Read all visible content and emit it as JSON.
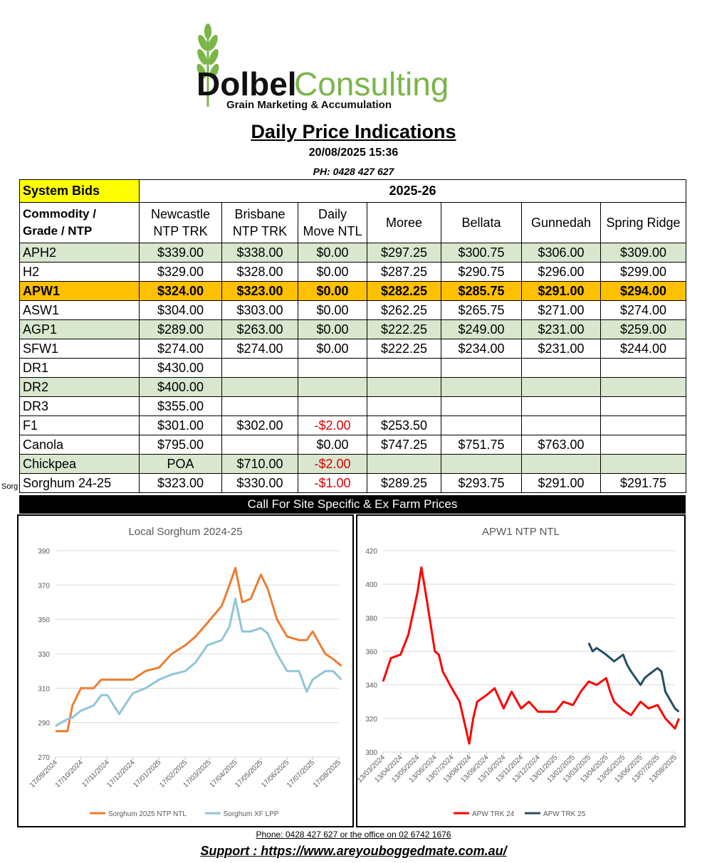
{
  "logo": {
    "brand_a": "Dolbel",
    "brand_b": "Consulting",
    "tagline": "Grain Marketing & Accumulation"
  },
  "header": {
    "title": "Daily Price Indications",
    "datetime": "20/08/2025 15:36",
    "phone": "PH: 0428 427 627"
  },
  "table": {
    "system_bids": "System Bids",
    "season": "2025-26",
    "col_labels": {
      "commodity_1": "Commodity /",
      "commodity_2": "Grade / NTP",
      "newcastle_1": "Newcastle",
      "newcastle_2": "NTP TRK",
      "brisbane_1": "Brisbane",
      "brisbane_2": "NTP TRK",
      "daily_1": "Daily",
      "daily_2": "Move NTL",
      "moree": "Moree",
      "bellata": "Bellata",
      "gunnedah": "Gunnedah",
      "spring_ridge": "Spring Ridge"
    },
    "rows": [
      {
        "grade": "APH2",
        "newcastle": "$339.00",
        "brisbane": "$338.00",
        "move": "$0.00",
        "moree": "$297.25",
        "bellata": "$300.75",
        "gunnedah": "$306.00",
        "spring_ridge": "$309.00"
      },
      {
        "grade": "H2",
        "newcastle": "$329.00",
        "brisbane": "$328.00",
        "move": "$0.00",
        "moree": "$287.25",
        "bellata": "$290.75",
        "gunnedah": "$296.00",
        "spring_ridge": "$299.00"
      },
      {
        "grade": "APW1",
        "newcastle": "$324.00",
        "brisbane": "$323.00",
        "move": "$0.00",
        "moree": "$282.25",
        "bellata": "$285.75",
        "gunnedah": "$291.00",
        "spring_ridge": "$294.00"
      },
      {
        "grade": "ASW1",
        "newcastle": "$304.00",
        "brisbane": "$303.00",
        "move": "$0.00",
        "moree": "$262.25",
        "bellata": "$265.75",
        "gunnedah": "$271.00",
        "spring_ridge": "$274.00"
      },
      {
        "grade": "AGP1",
        "newcastle": "$289.00",
        "brisbane": "$263.00",
        "move": "$0.00",
        "moree": "$222.25",
        "bellata": "$249.00",
        "gunnedah": "$231.00",
        "spring_ridge": "$259.00"
      },
      {
        "grade": "SFW1",
        "newcastle": "$274.00",
        "brisbane": "$274.00",
        "move": "$0.00",
        "moree": "$222.25",
        "bellata": "$234.00",
        "gunnedah": "$231.00",
        "spring_ridge": "$244.00"
      },
      {
        "grade": "DR1",
        "newcastle": "$430.00",
        "brisbane": "",
        "move": "",
        "moree": "",
        "bellata": "",
        "gunnedah": "",
        "spring_ridge": ""
      },
      {
        "grade": "DR2",
        "newcastle": "$400.00",
        "brisbane": "",
        "move": "",
        "moree": "",
        "bellata": "",
        "gunnedah": "",
        "spring_ridge": ""
      },
      {
        "grade": "DR3",
        "newcastle": "$355.00",
        "brisbane": "",
        "move": "",
        "moree": "",
        "bellata": "",
        "gunnedah": "",
        "spring_ridge": ""
      },
      {
        "grade": "F1",
        "newcastle": "$301.00",
        "brisbane": "$302.00",
        "move": "-$2.00",
        "moree": "$253.50",
        "bellata": "",
        "gunnedah": "",
        "spring_ridge": ""
      },
      {
        "grade": "Canola",
        "newcastle": "$795.00",
        "brisbane": "",
        "move": "$0.00",
        "moree": "$747.25",
        "bellata": "$751.75",
        "gunnedah": "$763.00",
        "spring_ridge": ""
      },
      {
        "grade": "Chickpea",
        "newcastle": "POA",
        "brisbane": "$710.00",
        "move": "-$2.00",
        "moree": "",
        "bellata": "",
        "gunnedah": "",
        "spring_ridge": ""
      },
      {
        "grade": "Sorghum 24-25",
        "newcastle": "$323.00",
        "brisbane": "$330.00",
        "move": "-$1.00",
        "moree": "$289.25",
        "bellata": "$293.75",
        "gunnedah": "$291.00",
        "spring_ridge": "$291.75"
      }
    ],
    "sorg_fragment": "Sorg",
    "call_bar": "Call For Site Specific & Ex Farm Prices",
    "colors": {
      "green_row": "#d9e7cf",
      "highlight": "#ffc000",
      "system_bids": "#ffff00",
      "negative": "#e00000"
    }
  },
  "chart_data": [
    {
      "type": "line",
      "title": "Local Sorghum 2024-25",
      "ylim": [
        270,
        390
      ],
      "yticks": [
        270,
        290,
        310,
        330,
        350,
        370,
        390
      ],
      "xticks": [
        "17/09/2024",
        "17/10/2024",
        "17/11/2024",
        "17/12/2024",
        "17/01/2025",
        "17/02/2025",
        "17/03/2025",
        "17/04/2025",
        "17/05/2025",
        "17/06/2025",
        "17/07/2025",
        "17/08/2025"
      ],
      "x": [
        "17/09/2024",
        "01/10/2024",
        "07/10/2024",
        "17/10/2024",
        "01/11/2024",
        "10/11/2024",
        "17/11/2024",
        "01/12/2024",
        "17/12/2024",
        "01/01/2025",
        "17/01/2025",
        "01/02/2025",
        "17/02/2025",
        "01/03/2025",
        "15/03/2025",
        "01/04/2025",
        "10/04/2025",
        "17/04/2025",
        "25/04/2025",
        "05/05/2025",
        "17/05/2025",
        "25/05/2025",
        "05/06/2025",
        "17/06/2025",
        "01/07/2025",
        "10/07/2025",
        "17/07/2025",
        "01/08/2025",
        "10/08/2025",
        "20/08/2025"
      ],
      "grid": true,
      "legend": "bottom",
      "series": [
        {
          "name": "Sorghum  2025 NTP NTL",
          "color": "#ed7d31",
          "values": [
            285,
            285,
            300,
            310,
            310,
            315,
            315,
            315,
            315,
            320,
            322,
            330,
            335,
            340,
            348,
            358,
            370,
            380,
            360,
            362,
            376,
            368,
            350,
            340,
            338,
            338,
            343,
            330,
            327,
            323
          ]
        },
        {
          "name": "Sorghum XF LPP",
          "color": "#92c5d8",
          "values": [
            288,
            292,
            293,
            297,
            300,
            306,
            306,
            295,
            307,
            310,
            315,
            318,
            320,
            325,
            335,
            338,
            346,
            362,
            343,
            343,
            345,
            342,
            330,
            320,
            320,
            308,
            315,
            320,
            320,
            315
          ]
        }
      ]
    },
    {
      "type": "line",
      "title": "APW1 NTP NTL",
      "ylim": [
        300,
        420
      ],
      "yticks": [
        300,
        320,
        340,
        360,
        380,
        400,
        420
      ],
      "xticks": [
        "13/03/2024",
        "13/04/2024",
        "13/05/2024",
        "13/06/2024",
        "13/07/2024",
        "13/08/2024",
        "13/09/2024",
        "13/10/2024",
        "13/11/2024",
        "13/12/2024",
        "13/01/2025",
        "13/02/2025",
        "13/03/2025",
        "13/04/2025",
        "13/05/2025",
        "13/06/2025",
        "13/07/2025",
        "13/08/2025"
      ],
      "grid": true,
      "legend": "bottom",
      "series": [
        {
          "name": "APW TRK 24",
          "color": "#ff0000",
          "x": [
            "13/03/2024",
            "27/03/2024",
            "13/04/2024",
            "27/04/2024",
            "13/05/2024",
            "20/05/2024",
            "27/05/2024",
            "13/06/2024",
            "20/06/2024",
            "27/06/2024",
            "13/07/2024",
            "27/07/2024",
            "13/08/2024",
            "20/08/2024",
            "27/08/2024",
            "13/09/2024",
            "27/09/2024",
            "13/10/2024",
            "27/10/2024",
            "13/11/2024",
            "27/11/2024",
            "13/12/2024",
            "13/01/2025",
            "27/01/2025",
            "13/02/2025",
            "27/02/2025",
            "13/03/2025",
            "27/03/2025",
            "13/04/2025",
            "20/04/2025",
            "27/04/2025",
            "13/05/2025",
            "27/05/2025",
            "13/06/2025",
            "27/06/2025",
            "13/07/2025",
            "20/07/2025",
            "27/07/2025",
            "13/08/2025",
            "20/08/2025"
          ],
          "values": [
            342,
            356,
            358,
            370,
            395,
            410,
            396,
            360,
            358,
            348,
            338,
            330,
            305,
            320,
            330,
            334,
            338,
            326,
            336,
            326,
            330,
            324,
            324,
            330,
            328,
            336,
            342,
            340,
            344,
            336,
            330,
            325,
            322,
            330,
            326,
            328,
            324,
            320,
            314,
            320
          ]
        },
        {
          "name": "APW TRK 25",
          "color": "#264e63",
          "x": [
            "13/03/2025",
            "20/03/2025",
            "27/03/2025",
            "13/04/2025",
            "27/04/2025",
            "13/05/2025",
            "20/05/2025",
            "27/05/2025",
            "13/06/2025",
            "20/06/2025",
            "27/06/2025",
            "13/07/2025",
            "20/07/2025",
            "27/07/2025",
            "13/08/2025",
            "20/08/2025"
          ],
          "values": [
            365,
            360,
            362,
            358,
            354,
            358,
            352,
            348,
            340,
            344,
            346,
            350,
            348,
            336,
            326,
            324
          ]
        }
      ]
    }
  ],
  "footer": {
    "phone": "Phone: 0428 427 627 or the office on 02 6742 1676",
    "support": "Support : https://www.areyouboggedmate.com.au/"
  }
}
